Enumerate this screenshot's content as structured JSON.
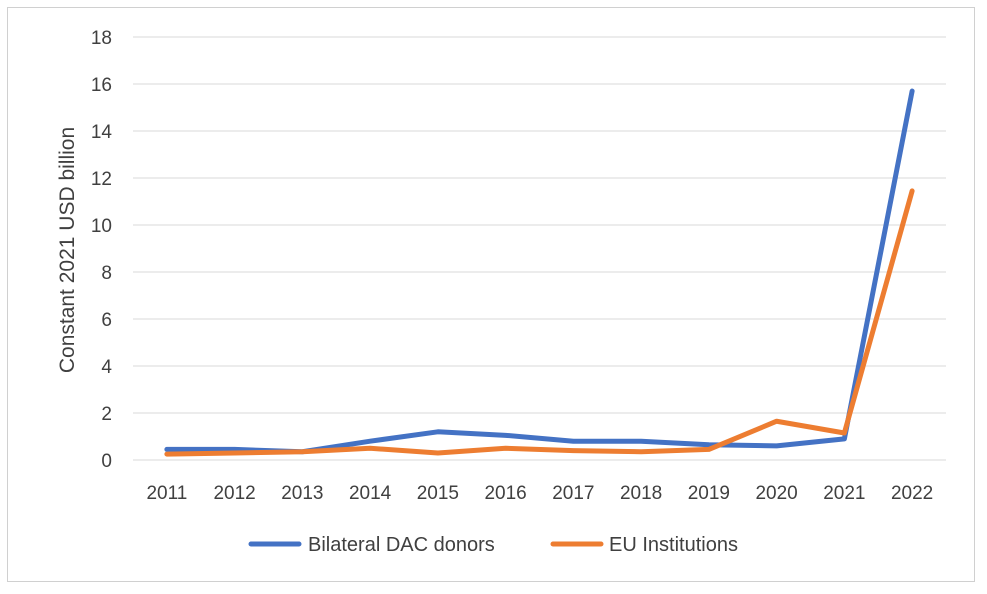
{
  "chart_data": {
    "type": "line",
    "title": "",
    "xlabel": "",
    "ylabel": "Constant 2021 USD billion",
    "categories": [
      "2011",
      "2012",
      "2013",
      "2014",
      "2015",
      "2016",
      "2017",
      "2018",
      "2019",
      "2020",
      "2021",
      "2022"
    ],
    "ylim": [
      0,
      18
    ],
    "yticks": [
      "0",
      "2",
      "4",
      "6",
      "8",
      "10",
      "12",
      "14",
      "16",
      "18"
    ],
    "grid": true,
    "legend_position": "bottom",
    "series": [
      {
        "name": "Bilateral DAC donors",
        "color": "#4472c4",
        "values": [
          0.45,
          0.45,
          0.35,
          0.8,
          1.2,
          1.05,
          0.8,
          0.8,
          0.65,
          0.6,
          0.9,
          15.7
        ]
      },
      {
        "name": "EU Institutions",
        "color": "#ed7d31",
        "values": [
          0.25,
          0.3,
          0.35,
          0.5,
          0.3,
          0.5,
          0.4,
          0.35,
          0.45,
          1.65,
          1.15,
          11.45
        ]
      }
    ]
  }
}
